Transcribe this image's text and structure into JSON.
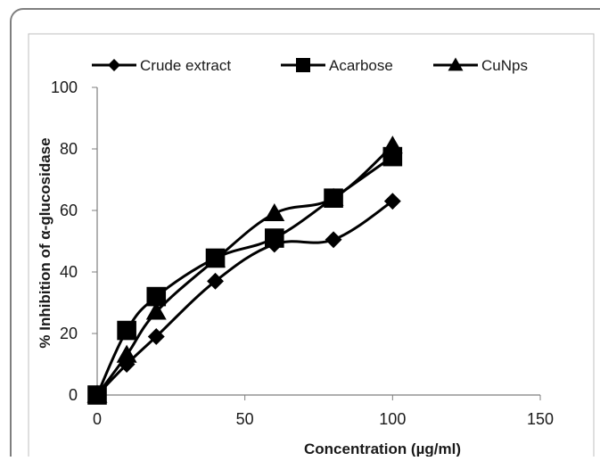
{
  "chart_data": {
    "type": "line",
    "title": "",
    "xlabel": "Concentration (µg/ml)",
    "ylabel": "% Inhibition of α-glucosidase",
    "xlim": [
      0,
      150
    ],
    "ylim": [
      0,
      100
    ],
    "xticks": [
      0,
      50,
      100,
      150
    ],
    "yticks": [
      0,
      20,
      40,
      60,
      80,
      100
    ],
    "grid": false,
    "smooth": true,
    "legend_position": "top",
    "series": [
      {
        "name": "Crude extract",
        "marker": "diamond",
        "color": "#000000",
        "x": [
          0,
          10,
          20,
          40,
          60,
          80,
          100
        ],
        "y": [
          0,
          10,
          19,
          37,
          49,
          50.5,
          63
        ]
      },
      {
        "name": "Acarbose",
        "marker": "square",
        "color": "#000000",
        "x": [
          0,
          10,
          20,
          40,
          60,
          80,
          100
        ],
        "y": [
          0,
          21,
          32,
          44.5,
          51,
          64,
          77.5
        ]
      },
      {
        "name": "CuNps",
        "marker": "triangle",
        "color": "#000000",
        "x": [
          0,
          10,
          20,
          40,
          60,
          80,
          100
        ],
        "y": [
          0,
          13,
          27,
          44,
          59,
          64,
          81
        ]
      }
    ]
  }
}
